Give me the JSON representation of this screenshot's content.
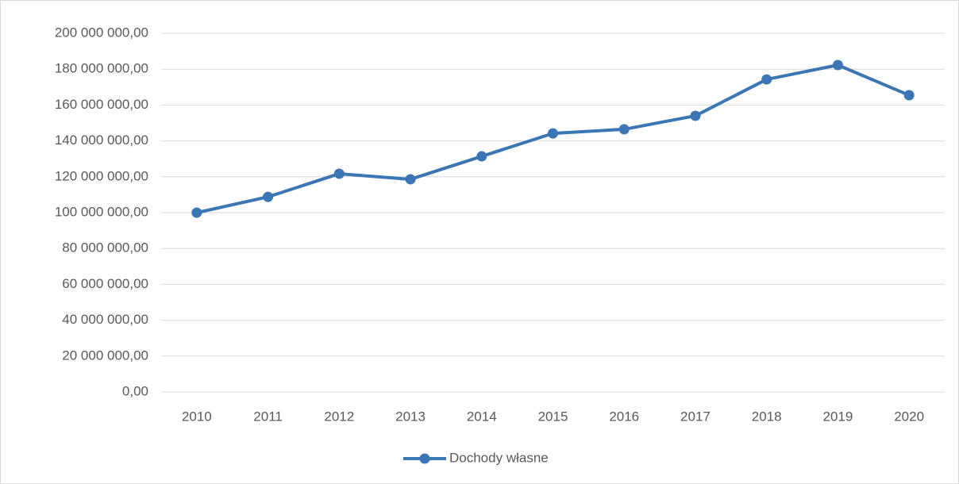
{
  "chart_data": {
    "type": "line",
    "categories": [
      "2010",
      "2011",
      "2012",
      "2013",
      "2014",
      "2015",
      "2016",
      "2017",
      "2018",
      "2019",
      "2020"
    ],
    "series": [
      {
        "name": "Dochody własne",
        "color": "#3a75b4",
        "values": [
          100000000,
          108800000,
          121700000,
          118600000,
          131400000,
          144200000,
          146500000,
          154000000,
          174300000,
          182300000,
          165500000
        ]
      }
    ],
    "ylim": [
      0,
      200000000
    ],
    "yticks": [
      {
        "value": 0,
        "label": "0,00"
      },
      {
        "value": 20000000,
        "label": "20 000 000,00"
      },
      {
        "value": 40000000,
        "label": "40 000 000,00"
      },
      {
        "value": 60000000,
        "label": "60 000 000,00"
      },
      {
        "value": 80000000,
        "label": "80 000 000,00"
      },
      {
        "value": 100000000,
        "label": "100 000 000,00"
      },
      {
        "value": 120000000,
        "label": "120 000 000,00"
      },
      {
        "value": 140000000,
        "label": "140 000 000,00"
      },
      {
        "value": 160000000,
        "label": "160 000 000,00"
      },
      {
        "value": 180000000,
        "label": "180 000 000,00"
      },
      {
        "value": 200000000,
        "label": "200 000 000,00"
      }
    ],
    "grid": true,
    "legend": "bottom"
  }
}
